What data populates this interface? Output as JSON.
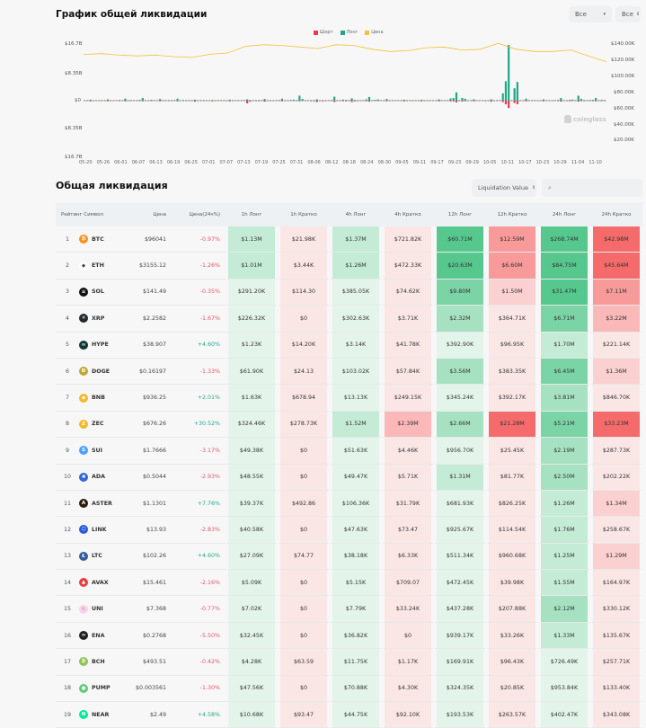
{
  "chart": {
    "title": "График общей ликвидации",
    "select1": "Все",
    "select2": "Все",
    "legend": [
      {
        "label": "Шорт",
        "color": "#e8394f"
      },
      {
        "label": "Лонг",
        "color": "#1fa887"
      },
      {
        "label": "Цена",
        "color": "#f2c230"
      }
    ],
    "watermark": "coinglass"
  },
  "chart_data": {
    "type": "bar",
    "title": "График общей ликвидации",
    "categories": [
      "05-20",
      "05-26",
      "06-01",
      "06-07",
      "06-13",
      "06-19",
      "06-25",
      "07-01",
      "07-07",
      "07-13",
      "07-19",
      "07-25",
      "07-31",
      "08-06",
      "08-12",
      "08-18",
      "08-24",
      "08-30",
      "09-05",
      "09-11",
      "09-17",
      "09-23",
      "09-29",
      "10-05",
      "10-11",
      "10-17",
      "10-23",
      "10-29",
      "11-04",
      "11-10"
    ],
    "left_axis_ticks": [
      "$16.7B",
      "$8.35B",
      "$0",
      "$8.35B",
      "$16.7B"
    ],
    "right_axis_ticks": [
      "$140.00K",
      "$120.00K",
      "$100.00K",
      "$80.00K",
      "$60.00K",
      "$40.00K",
      "$20.00K"
    ],
    "series": [
      {
        "name": "Лонг",
        "values": [
          0.3,
          0.4,
          0.6,
          0.8,
          0.5,
          0.6,
          0.3,
          0.2,
          0.3,
          0.4,
          0.5,
          0.6,
          1.5,
          0.4,
          1.2,
          0.7,
          1.1,
          0.5,
          0.3,
          0.3,
          0.4,
          2.5,
          0.4,
          0.4,
          16.7,
          0.6,
          0.4,
          0.8,
          1.5,
          0.8
        ]
      },
      {
        "name": "Шорт",
        "values": [
          0.2,
          0.2,
          0.2,
          0.2,
          0.2,
          0.2,
          0.3,
          0.2,
          0.2,
          0.8,
          0.3,
          0.2,
          0.2,
          0.4,
          0.4,
          0.4,
          0.3,
          0.2,
          0.2,
          0.2,
          0.2,
          0.5,
          0.2,
          0.3,
          2.2,
          0.2,
          0.2,
          0.3,
          0.3,
          0.2
        ]
      },
      {
        "name": "Цена",
        "values": [
          106,
          107,
          105,
          104,
          105,
          103,
          102,
          106,
          108,
          117,
          119,
          118,
          116,
          114,
          119,
          118,
          113,
          110,
          111,
          115,
          116,
          112,
          113,
          121,
          113,
          110,
          110,
          112,
          104,
          96
        ]
      }
    ],
    "ylim": [
      -16.7,
      16.7
    ],
    "y2lim": [
      0,
      160
    ],
    "legend_position": "top"
  },
  "table": {
    "title": "Общая ликвидация",
    "sort_select": "Liquidation Value",
    "search_placeholder": "",
    "headers": [
      "Рейтинг",
      "Символ",
      "Цена",
      "Цена(24ч%)",
      "1h Лонг",
      "1h Кратко",
      "4h Лонг",
      "4h Кратко",
      "12h Лонг",
      "12h Кратко",
      "24h Лонг",
      "24h Кратко"
    ],
    "rows": [
      {
        "rank": "1",
        "symbol": "BTC",
        "icon": "₿",
        "iconColor": "#f7931a",
        "price": "$96041",
        "chg": "-0.97%",
        "v": [
          "$1.13M",
          "$21.98K",
          "$1.37M",
          "$721.82K",
          "$60.71M",
          "$12.59M",
          "$268.74M",
          "$42.98M"
        ]
      },
      {
        "rank": "2",
        "symbol": "ETH",
        "icon": "◆",
        "iconColor": "#ffffff",
        "price": "$3155.12",
        "chg": "-1.26%",
        "v": [
          "$1.01M",
          "$3.44K",
          "$1.26M",
          "$472.33K",
          "$20.63M",
          "$6.60M",
          "$84.75M",
          "$45.64M"
        ]
      },
      {
        "rank": "3",
        "symbol": "SOL",
        "icon": "≡",
        "iconColor": "#111111",
        "price": "$141.49",
        "chg": "-0.35%",
        "v": [
          "$291.20K",
          "$114.30",
          "$385.05K",
          "$74.62K",
          "$9.80M",
          "$1.50M",
          "$31.47M",
          "$7.11M"
        ]
      },
      {
        "rank": "4",
        "symbol": "XRP",
        "icon": "✕",
        "iconColor": "#23292f",
        "price": "$2.2582",
        "chg": "-1.67%",
        "v": [
          "$226.32K",
          "$0",
          "$302.63K",
          "$3.71K",
          "$2.32M",
          "$364.71K",
          "$6.71M",
          "$3.22M"
        ]
      },
      {
        "rank": "5",
        "symbol": "HYPE",
        "icon": "∞",
        "iconColor": "#0f3a33",
        "price": "$38.907",
        "chg": "+4.60%",
        "v": [
          "$1.23K",
          "$14.20K",
          "$3.14K",
          "$41.78K",
          "$392.90K",
          "$96.95K",
          "$1.70M",
          "$221.14K"
        ]
      },
      {
        "rank": "6",
        "symbol": "DOGE",
        "icon": "Ð",
        "iconColor": "#c2a633",
        "price": "$0.16197",
        "chg": "-1.33%",
        "v": [
          "$61.90K",
          "$24.13",
          "$103.02K",
          "$57.84K",
          "$3.56M",
          "$383.35K",
          "$6.45M",
          "$1.36M"
        ]
      },
      {
        "rank": "7",
        "symbol": "BNB",
        "icon": "◆",
        "iconColor": "#f3ba2f",
        "price": "$936.25",
        "chg": "+2.01%",
        "v": [
          "$1.63K",
          "$678.94",
          "$13.13K",
          "$249.15K",
          "$345.24K",
          "$392.17K",
          "$3.81M",
          "$846.70K"
        ]
      },
      {
        "rank": "8",
        "symbol": "ZEC",
        "icon": "Z",
        "iconColor": "#f4b728",
        "price": "$676.26",
        "chg": "+30.52%",
        "v": [
          "$324.46K",
          "$278.73K",
          "$1.52M",
          "$2.39M",
          "$2.66M",
          "$21.28M",
          "$5.21M",
          "$33.23M"
        ]
      },
      {
        "rank": "9",
        "symbol": "SUI",
        "icon": "S",
        "iconColor": "#4da2ff",
        "price": "$1.7666",
        "chg": "-3.17%",
        "v": [
          "$49.38K",
          "$0",
          "$51.63K",
          "$4.46K",
          "$956.70K",
          "$25.45K",
          "$2.19M",
          "$287.73K"
        ]
      },
      {
        "rank": "10",
        "symbol": "ADA",
        "icon": "✺",
        "iconColor": "#3468d1",
        "price": "$0.5044",
        "chg": "-2.93%",
        "v": [
          "$48.55K",
          "$0",
          "$49.47K",
          "$5.71K",
          "$1.31M",
          "$81.77K",
          "$2.50M",
          "$202.22K"
        ]
      },
      {
        "rank": "11",
        "symbol": "ASTER",
        "icon": "A",
        "iconColor": "#2b1d0e",
        "price": "$1.1301",
        "chg": "+7.76%",
        "v": [
          "$39.37K",
          "$492.86",
          "$106.36K",
          "$31.79K",
          "$681.93K",
          "$826.25K",
          "$1.26M",
          "$1.34M"
        ]
      },
      {
        "rank": "12",
        "symbol": "LINK",
        "icon": "⬡",
        "iconColor": "#2a5ada",
        "price": "$13.93",
        "chg": "-2.83%",
        "v": [
          "$40.58K",
          "$0",
          "$47.63K",
          "$73.47",
          "$925.67K",
          "$114.54K",
          "$1.76M",
          "$258.67K"
        ]
      },
      {
        "rank": "13",
        "symbol": "LTC",
        "icon": "Ł",
        "iconColor": "#345d9d",
        "price": "$102.26",
        "chg": "+4.60%",
        "v": [
          "$27.09K",
          "$74.77",
          "$38.18K",
          "$6.33K",
          "$511.34K",
          "$960.68K",
          "$1.25M",
          "$1.29M"
        ]
      },
      {
        "rank": "14",
        "symbol": "AVAX",
        "icon": "▲",
        "iconColor": "#e84142",
        "price": "$15.461",
        "chg": "-2.16%",
        "v": [
          "$5.09K",
          "$0",
          "$5.15K",
          "$709.07",
          "$472.45K",
          "$39.98K",
          "$1.55M",
          "$164.97K"
        ]
      },
      {
        "rank": "15",
        "symbol": "UNI",
        "icon": "♘",
        "iconColor": "#fbd2ea",
        "price": "$7.368",
        "chg": "-0.77%",
        "v": [
          "$7.02K",
          "$0",
          "$7.79K",
          "$33.24K",
          "$437.28K",
          "$207.88K",
          "$2.12M",
          "$330.12K"
        ]
      },
      {
        "rank": "16",
        "symbol": "ENA",
        "icon": "∞",
        "iconColor": "#222222",
        "price": "$0.2768",
        "chg": "-5.50%",
        "v": [
          "$32.45K",
          "$0",
          "$36.82K",
          "$0",
          "$939.17K",
          "$33.26K",
          "$1.33M",
          "$135.67K"
        ]
      },
      {
        "rank": "17",
        "symbol": "BCH",
        "icon": "₿",
        "iconColor": "#8dc351",
        "price": "$493.51",
        "chg": "-0.42%",
        "v": [
          "$4.28K",
          "$63.59",
          "$11.75K",
          "$1.17K",
          "$169.91K",
          "$96.43K",
          "$726.49K",
          "$257.71K"
        ]
      },
      {
        "rank": "18",
        "symbol": "PUMP",
        "icon": "●",
        "iconColor": "#5fcb7a",
        "price": "$0.003561",
        "chg": "-1.30%",
        "v": [
          "$47.56K",
          "$0",
          "$70.88K",
          "$4.30K",
          "$324.35K",
          "$20.85K",
          "$953.84K",
          "$133.40K"
        ]
      },
      {
        "rank": "19",
        "symbol": "NEAR",
        "icon": "N",
        "iconColor": "#00ec97",
        "price": "$2.49",
        "chg": "+4.58%",
        "v": [
          "$10.68K",
          "$93.47",
          "$44.75K",
          "$92.10K",
          "$193.53K",
          "$263.57K",
          "$402.47K",
          "$343.08K"
        ]
      }
    ]
  }
}
